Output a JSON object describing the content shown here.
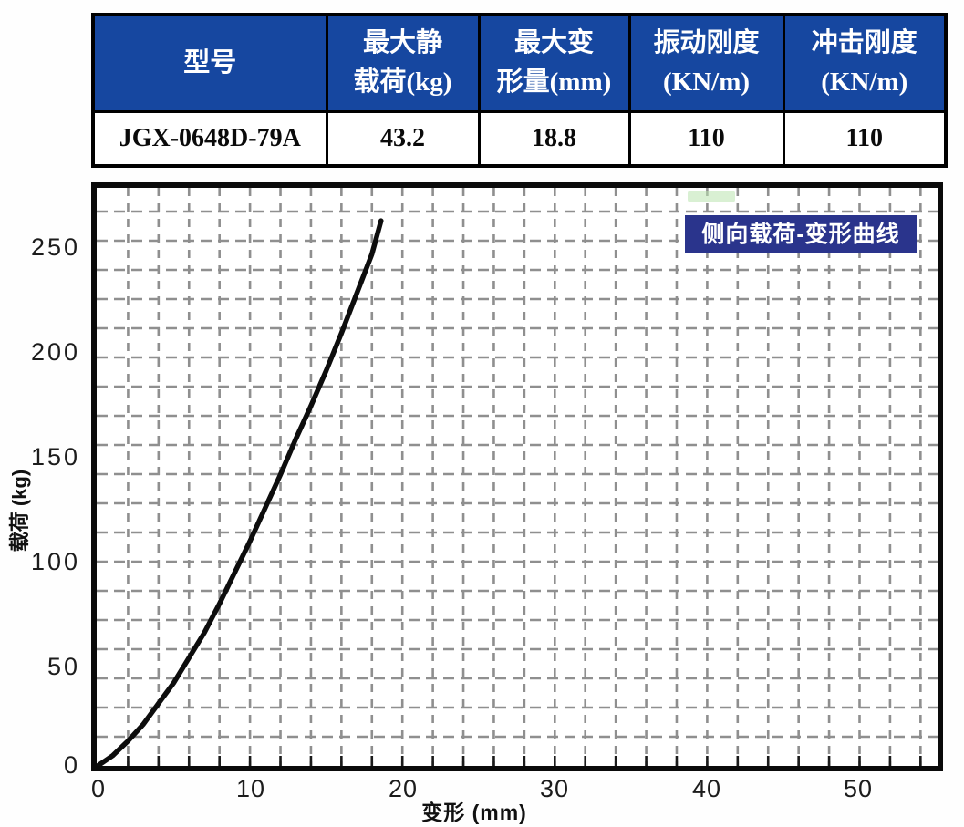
{
  "table": {
    "columns": [
      "型号",
      "最大静\n载荷(kg)",
      "最大变\n形量(mm)",
      "振动刚度\n(KN/m)",
      "冲击刚度\n(KN/m)"
    ],
    "row": [
      "JGX-0648D-79A",
      "43.2",
      "18.8",
      "110",
      "110"
    ]
  },
  "colors": {
    "header_bg": "#1647a0",
    "legend_bg": "#2a348c",
    "grid": "#8f8f8f",
    "curve": "#0d0d0d",
    "artifact_green": "#b9e4ae"
  },
  "chart_data": {
    "type": "line",
    "title": "侧向载荷-变形曲线",
    "xlabel": "变形 (mm)",
    "ylabel": "载荷 (kg)",
    "x_ticks": [
      "0",
      "10",
      "20",
      "30",
      "40",
      "50"
    ],
    "y_ticks": [
      "0",
      "50",
      "100",
      "150",
      "200",
      "250"
    ],
    "xlim": [
      0,
      55
    ],
    "ylim": [
      0,
      278
    ],
    "grid": "dashed",
    "legend_position": "top-right",
    "series": [
      {
        "name": "侧向载荷-变形曲线",
        "points": [
          [
            0,
            0
          ],
          [
            1,
            5
          ],
          [
            2,
            12
          ],
          [
            3,
            20
          ],
          [
            4,
            30
          ],
          [
            5,
            40
          ],
          [
            6,
            52
          ],
          [
            7,
            64
          ],
          [
            8,
            78
          ],
          [
            9,
            93
          ],
          [
            10,
            108
          ],
          [
            11,
            124
          ],
          [
            12,
            140
          ],
          [
            13,
            157
          ],
          [
            14,
            173
          ],
          [
            15,
            190
          ],
          [
            16,
            208
          ],
          [
            17,
            227
          ],
          [
            18,
            246
          ],
          [
            18.6,
            262
          ]
        ]
      }
    ]
  }
}
